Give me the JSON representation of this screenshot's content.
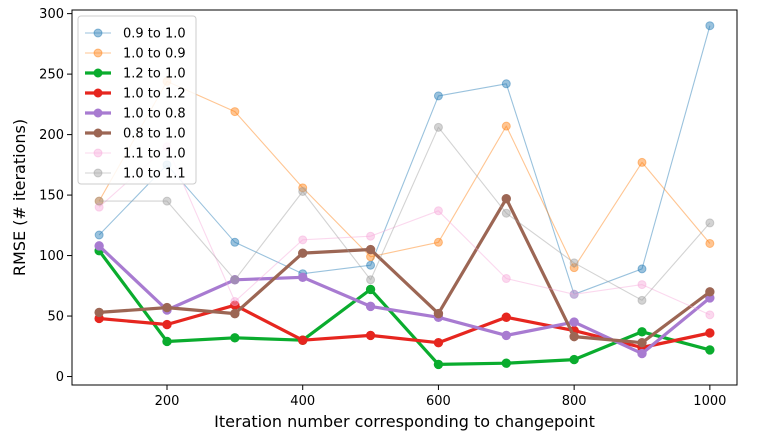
{
  "chart_data": {
    "type": "line",
    "xlabel": "Iteration number corresponding to changepoint",
    "ylabel": "RMSE (# iterations)",
    "xlim": [
      60,
      1040
    ],
    "ylim": [
      -7,
      303
    ],
    "xticks": [
      200,
      400,
      600,
      800,
      1000
    ],
    "yticks": [
      0,
      50,
      100,
      150,
      200,
      250,
      300
    ],
    "legend_position": "top-left",
    "x": [
      100,
      200,
      300,
      400,
      500,
      600,
      700,
      800,
      900,
      1000
    ],
    "series": [
      {
        "name": "0.9 to 1.0",
        "color": "#1f77b4",
        "bold": false,
        "values": [
          117,
          175,
          111,
          85,
          92,
          232,
          242,
          68,
          89,
          290
        ]
      },
      {
        "name": "1.0 to 0.9",
        "color": "#ff7f0e",
        "bold": false,
        "values": [
          145,
          244,
          219,
          156,
          99,
          111,
          207,
          90,
          177,
          110
        ]
      },
      {
        "name": "1.2 to 1.0",
        "color": "#0aac2e",
        "bold": true,
        "values": [
          104,
          29,
          32,
          30,
          72,
          10,
          11,
          14,
          37,
          22
        ]
      },
      {
        "name": "1.0 to 1.2",
        "color": "#e6261f",
        "bold": true,
        "values": [
          48,
          43,
          59,
          30,
          34,
          28,
          49,
          38,
          24,
          36
        ]
      },
      {
        "name": "1.0 to 0.8",
        "color": "#a87bd1",
        "bold": true,
        "values": [
          108,
          55,
          80,
          82,
          58,
          49,
          34,
          45,
          19,
          65
        ]
      },
      {
        "name": "0.8 to 1.0",
        "color": "#9c6654",
        "bold": true,
        "values": [
          53,
          57,
          52,
          102,
          105,
          52,
          147,
          33,
          28,
          70
        ]
      },
      {
        "name": "1.1 to 1.0",
        "color": "#f7a8d9",
        "bold": false,
        "values": [
          140,
          190,
          62,
          113,
          116,
          137,
          81,
          68,
          76,
          51
        ]
      },
      {
        "name": "1.0 to 1.1",
        "color": "#9e9e9e",
        "bold": false,
        "values": [
          145,
          145,
          80,
          153,
          80,
          206,
          135,
          94,
          63,
          127
        ]
      }
    ]
  }
}
